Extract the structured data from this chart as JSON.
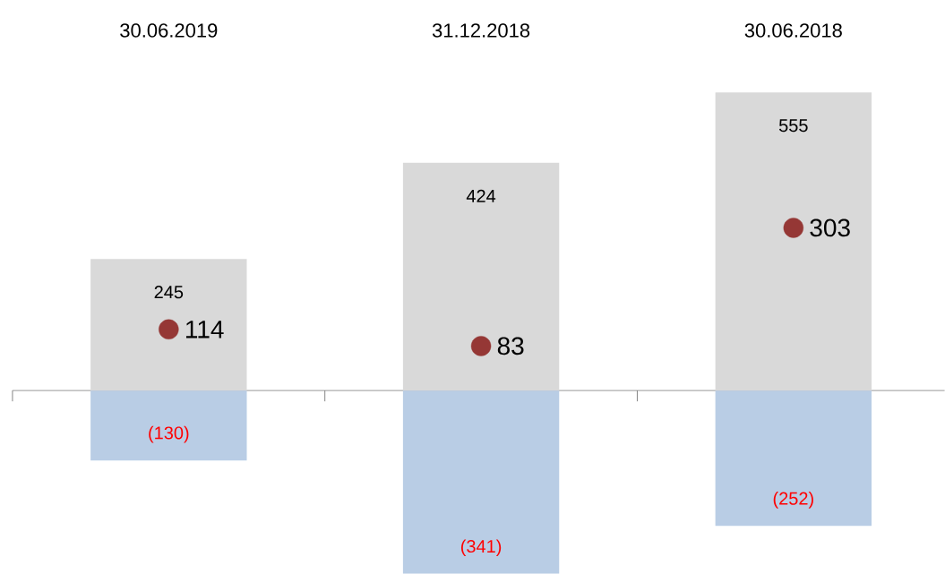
{
  "chart_data": {
    "type": "bar",
    "stacked": true,
    "categories": [
      "30.06.2019",
      "31.12.2018",
      "30.06.2018"
    ],
    "series": [
      {
        "color": "#d9d9d9",
        "values": [
          245,
          424,
          555
        ],
        "value_labels": [
          "245",
          "424",
          "555"
        ]
      },
      {
        "color": "#b9cde5",
        "values": [
          -130,
          -341,
          -252
        ],
        "value_labels": [
          "(130)",
          "(341)",
          "(252)"
        ]
      },
      {
        "type": "scatter",
        "color": "#953735",
        "x": [
          "30.06.2019",
          "31.12.2018",
          "30.06.2018"
        ],
        "values": [
          114,
          83,
          303
        ],
        "value_labels": [
          "114",
          "83",
          "303"
        ]
      }
    ]
  }
}
